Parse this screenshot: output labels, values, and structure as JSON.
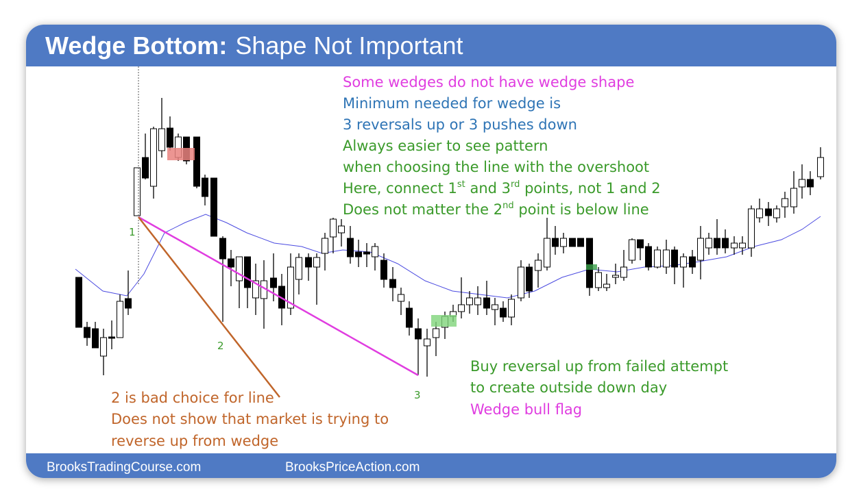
{
  "header": {
    "title_bold": "Wedge Bottom:",
    "title_rest": "Shape Not Important"
  },
  "notes_top": [
    [
      "Some wedges do not have wedge shape"
    ],
    [
      "Minimum needed for wedge is"
    ],
    [
      "3 reversals up or 3 pushes down"
    ],
    [
      "Always easier to see pattern"
    ],
    [
      "when choosing the line with the overshoot"
    ],
    [
      "Here, connect 1",
      "st",
      " and 3",
      "rd",
      " points, not 1 and 2"
    ],
    [
      "Does not matter the 2",
      "nd",
      " point is below line"
    ]
  ],
  "notes_right": [
    "Buy reversal up from failed attempt",
    "to create outside down day",
    "Wedge bull flag"
  ],
  "notes_left": [
    "2 is bad choice for line",
    "Does not show that market is trying to",
    "reverse up from wedge"
  ],
  "point_labels": [
    "1",
    "2",
    "3"
  ],
  "footer": [
    "BrooksTradingCourse.com",
    "BrooksPriceAction.com"
  ]
}
